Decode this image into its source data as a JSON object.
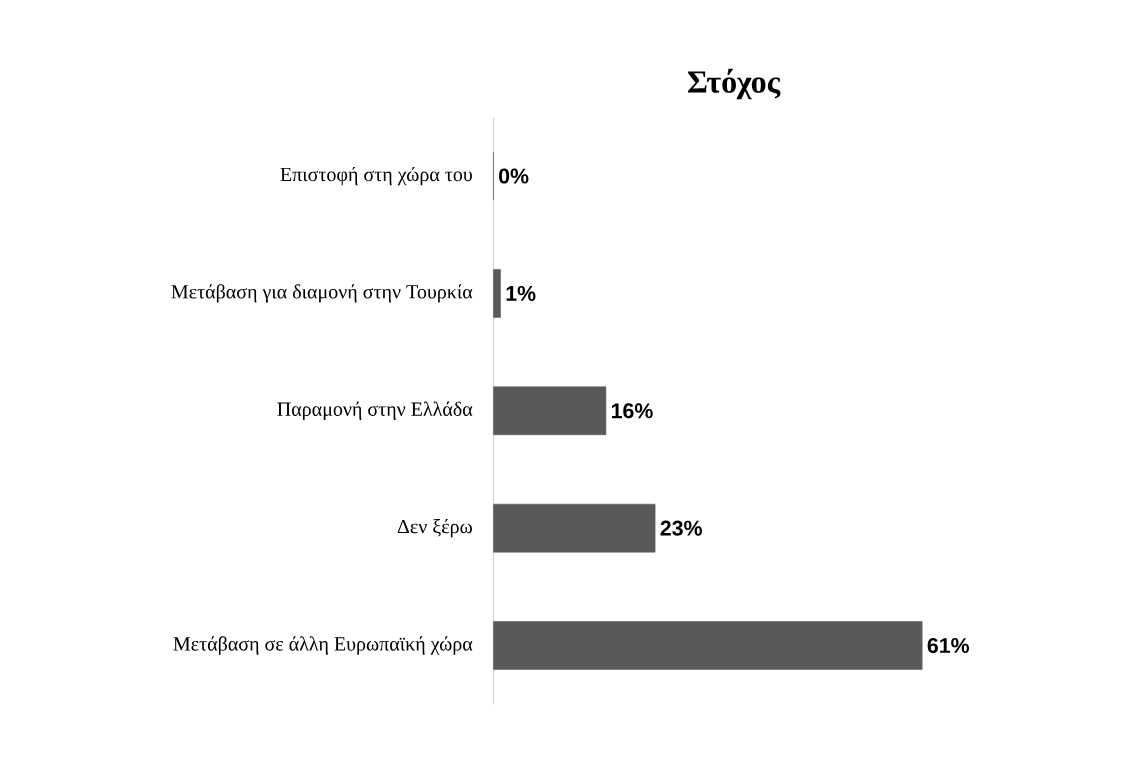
{
  "chart_data": {
    "type": "bar",
    "orientation": "horizontal",
    "title": "Στόχος",
    "categories": [
      "Επιστοφή στη χώρα του",
      "Μετάβαση για διαμονή στην Τουρκία",
      "Παραμονή στην Ελλάδα",
      "Δεν ξέρω",
      "Μετάβαση σε άλλη Ευρωπαϊκή χώρα"
    ],
    "values": [
      0,
      1,
      16,
      23,
      61
    ],
    "value_labels": [
      "0%",
      "1%",
      "16%",
      "23%",
      "61%"
    ],
    "color": "#595959"
  }
}
